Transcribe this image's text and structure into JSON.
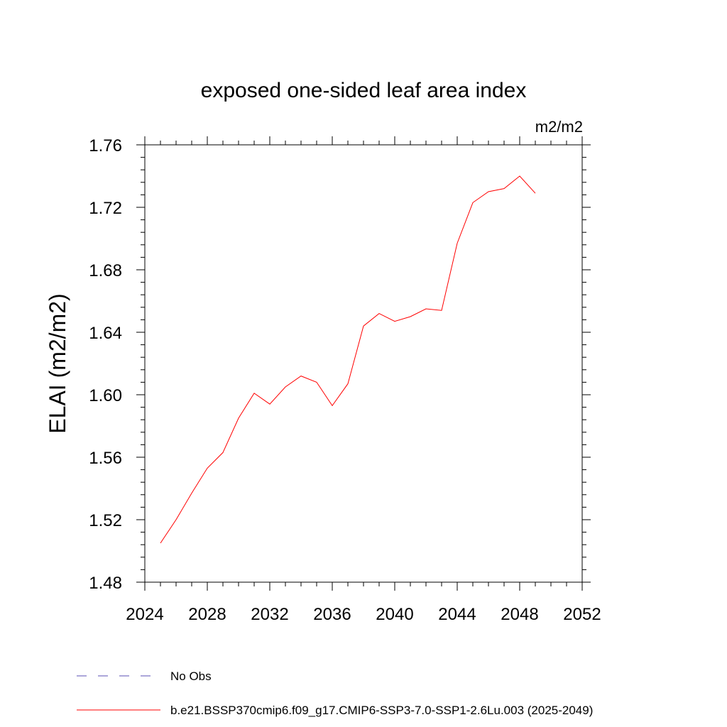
{
  "chart_data": {
    "type": "line",
    "title": "exposed one-sided leaf area index",
    "units": "m2/m2",
    "ylabel": "ELAI  (m2/m2)",
    "xlabel": "",
    "xlim": [
      2024,
      2052
    ],
    "ylim": [
      1.48,
      1.76
    ],
    "x_ticks": [
      2024,
      2028,
      2032,
      2036,
      2040,
      2044,
      2048,
      2052
    ],
    "x_tick_labels": [
      "2024",
      "2028",
      "2032",
      "2036",
      "2040",
      "2044",
      "2048",
      "2052"
    ],
    "y_ticks": [
      1.48,
      1.52,
      1.56,
      1.6,
      1.64,
      1.68,
      1.72,
      1.76
    ],
    "y_tick_labels": [
      "1.48",
      "1.52",
      "1.56",
      "1.60",
      "1.64",
      "1.68",
      "1.72",
      "1.76"
    ],
    "grid": false,
    "legend_position": "bottom-left",
    "series": [
      {
        "name": "b.e21.BSSP370cmip6.f09_g17.CMIP6-SSP3-7.0-SSP1-2.6Lu.003 (2025-2049)",
        "color": "#ff0000",
        "x": [
          2025,
          2026,
          2027,
          2028,
          2029,
          2030,
          2031,
          2032,
          2033,
          2034,
          2035,
          2036,
          2037,
          2038,
          2039,
          2040,
          2041,
          2042,
          2043,
          2044,
          2045,
          2046,
          2047,
          2048,
          2049
        ],
        "y": [
          1.505,
          1.52,
          1.537,
          1.553,
          1.563,
          1.585,
          1.601,
          1.594,
          1.605,
          1.612,
          1.608,
          1.593,
          1.607,
          1.644,
          1.652,
          1.647,
          1.65,
          1.655,
          1.654,
          1.697,
          1.723,
          1.73,
          1.732,
          1.74,
          1.729
        ]
      }
    ],
    "legend": [
      {
        "label": "No Obs",
        "style": "dashed",
        "color": "#5a4fb4"
      },
      {
        "label": "b.e21.BSSP370cmip6.f09_g17.CMIP6-SSP3-7.0-SSP1-2.6Lu.003 (2025-2049)",
        "style": "solid",
        "color": "#ff0000"
      }
    ]
  }
}
